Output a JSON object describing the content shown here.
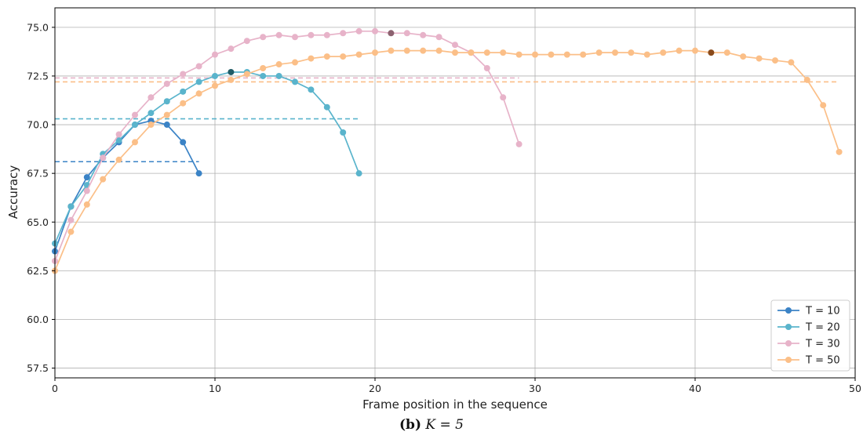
{
  "chart_data": {
    "type": "line",
    "xlabel": "Frame position in the sequence",
    "ylabel": "Accuracy",
    "xlim": [
      0,
      50
    ],
    "ylim": [
      57,
      76
    ],
    "xticks": [
      0,
      10,
      20,
      30,
      40,
      50
    ],
    "xtick_labels": [
      "0",
      "10",
      "20",
      "30",
      "40",
      "50"
    ],
    "yticks": [
      57.5,
      60.0,
      62.5,
      65.0,
      67.5,
      70.0,
      72.5,
      75.0
    ],
    "ytick_labels": [
      "57.5",
      "60.0",
      "62.5",
      "65.0",
      "67.5",
      "70.0",
      "72.5",
      "75.0"
    ],
    "grid": true,
    "legend_position": "bottom-right",
    "series": [
      {
        "name": "T = 10",
        "legend_label": "T = 10",
        "color": "#3b83c6",
        "highlight_color": "#1f3f66",
        "x": [
          0,
          1,
          2,
          3,
          4,
          5,
          6,
          7,
          8,
          9
        ],
        "values": [
          63.5,
          65.8,
          67.3,
          68.3,
          69.1,
          70.0,
          70.2,
          70.0,
          69.1,
          67.5
        ],
        "highlight_index": 1,
        "mean": 68.1,
        "mean_x_range": [
          0,
          9
        ]
      },
      {
        "name": "T = 20",
        "legend_label": "T = 20",
        "color": "#5ab4cc",
        "highlight_color": "#1f5b66",
        "x": [
          0,
          1,
          2,
          3,
          4,
          5,
          6,
          7,
          8,
          9,
          10,
          11,
          12,
          13,
          14,
          15,
          16,
          17,
          18,
          19
        ],
        "values": [
          63.9,
          65.8,
          66.9,
          68.5,
          69.2,
          70.0,
          70.6,
          71.2,
          71.7,
          72.2,
          72.5,
          72.7,
          72.7,
          72.5,
          72.5,
          72.2,
          71.8,
          70.9,
          69.6,
          67.5
        ],
        "highlight_index": 11,
        "mean": 70.3,
        "mean_x_range": [
          0,
          19
        ]
      },
      {
        "name": "T = 30",
        "legend_label": "T = 30",
        "color": "#e7b3c9",
        "highlight_color": "#8c6270",
        "x": [
          0,
          1,
          2,
          3,
          4,
          5,
          6,
          7,
          8,
          9,
          10,
          11,
          12,
          13,
          14,
          15,
          16,
          17,
          18,
          19,
          20,
          21,
          22,
          23,
          24,
          25,
          26,
          27,
          28,
          29
        ],
        "values": [
          63.0,
          65.1,
          66.6,
          68.3,
          69.5,
          70.5,
          71.4,
          72.1,
          72.6,
          73.0,
          73.6,
          73.9,
          74.3,
          74.5,
          74.6,
          74.5,
          74.6,
          74.6,
          74.7,
          74.8,
          74.8,
          74.7,
          74.7,
          74.6,
          74.5,
          74.1,
          73.7,
          72.9,
          71.4,
          69.0
        ],
        "highlight_index": 21,
        "mean": 72.4,
        "mean_x_range": [
          0,
          29
        ]
      },
      {
        "name": "T = 50",
        "legend_label": "T = 50",
        "color": "#fbbf88",
        "highlight_color": "#8a4a1a",
        "x": [
          0,
          1,
          2,
          3,
          4,
          5,
          6,
          7,
          8,
          9,
          10,
          11,
          12,
          13,
          14,
          15,
          16,
          17,
          18,
          19,
          20,
          21,
          22,
          23,
          24,
          25,
          26,
          27,
          28,
          29,
          30,
          31,
          32,
          33,
          34,
          35,
          36,
          37,
          38,
          39,
          40,
          41,
          42,
          43,
          44,
          45,
          46,
          47,
          48,
          49
        ],
        "values": [
          62.5,
          64.5,
          65.9,
          67.2,
          68.2,
          69.1,
          70.0,
          70.5,
          71.1,
          71.6,
          72.0,
          72.3,
          72.6,
          72.9,
          73.1,
          73.2,
          73.4,
          73.5,
          73.5,
          73.6,
          73.7,
          73.8,
          73.8,
          73.8,
          73.8,
          73.7,
          73.7,
          73.7,
          73.7,
          73.6,
          73.6,
          73.6,
          73.6,
          73.6,
          73.7,
          73.7,
          73.7,
          73.6,
          73.7,
          73.8,
          73.8,
          73.7,
          73.7,
          73.5,
          73.4,
          73.3,
          73.2,
          72.3,
          71.0,
          68.6
        ],
        "highlight_index": 41,
        "mean": 72.2,
        "mean_x_range": [
          0,
          49
        ]
      }
    ]
  },
  "caption": {
    "label": "(b)",
    "math": "K = 5"
  }
}
